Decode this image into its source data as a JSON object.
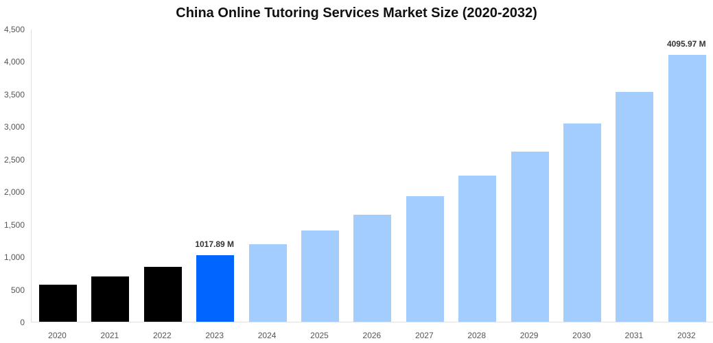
{
  "chart_data": {
    "type": "bar",
    "title": "China Online Tutoring Services Market Size (2020-2032)",
    "xlabel": "",
    "ylabel": "",
    "ylim": [
      0,
      4500
    ],
    "yticks": [
      0,
      500,
      1000,
      1500,
      2000,
      2500,
      3000,
      3500,
      4000,
      4500
    ],
    "ytick_labels": [
      "0",
      "500",
      "1,000",
      "1,500",
      "2,000",
      "2,500",
      "3,000",
      "3,500",
      "4,000",
      "4,500"
    ],
    "grid": false,
    "legend": null,
    "categories": [
      "2020",
      "2021",
      "2022",
      "2023",
      "2024",
      "2025",
      "2026",
      "2027",
      "2028",
      "2029",
      "2030",
      "2031",
      "2032"
    ],
    "values": [
      570,
      700,
      845,
      1017.89,
      1190,
      1400,
      1645,
      1930,
      2245,
      2615,
      3045,
      3530,
      4095.97
    ],
    "bar_colors": [
      "#000000",
      "#000000",
      "#000000",
      "#0066ff",
      "#a2cdfd",
      "#a2cdfd",
      "#a2cdfd",
      "#a2cdfd",
      "#a2cdfd",
      "#a2cdfd",
      "#a2cdfd",
      "#a2cdfd",
      "#a2cdfd"
    ],
    "annotations": [
      {
        "category": "2023",
        "text": "1017.89 M"
      },
      {
        "category": "2032",
        "text": "4095.97 M"
      }
    ]
  }
}
